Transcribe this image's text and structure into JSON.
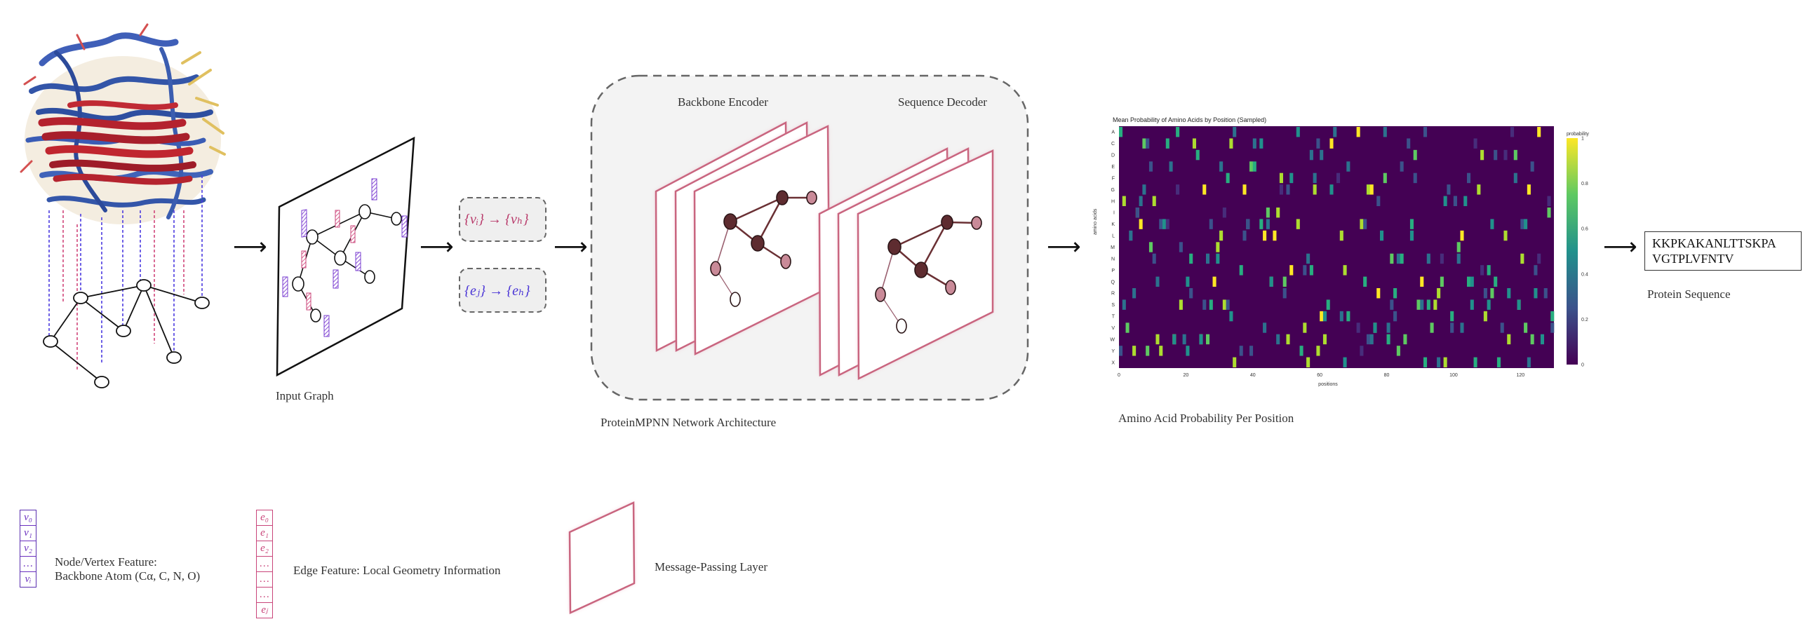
{
  "labels": {
    "input_graph": "Input Graph",
    "network_arch": "ProteinMPNN Network Architecture",
    "backbone_encoder": "Backbone Encoder",
    "sequence_decoder": "Sequence Decoder",
    "amino_caption": "Amino Acid Probability Per Position",
    "protein_sequence": "Protein Sequence",
    "node_feature_line1": "Node/Vertex Feature:",
    "node_feature_line2": "Backbone Atom (Cα, C, N, O)",
    "edge_feature": "Edge Feature: Local Geometry Information",
    "message_passing": "Message-Passing Layer"
  },
  "equations": {
    "node": "{vᵢ} → {vₕ}",
    "edge": "{eⱼ} → {eₕ}"
  },
  "sequence": {
    "line1": "KKPKAKANLTTSKPA",
    "line2": "VGTPLVFNTV"
  },
  "legend": {
    "node_cells": [
      "v₀",
      "v₁",
      "v₂",
      "…",
      "vᵢ"
    ],
    "edge_cells": [
      "e₀",
      "e₁",
      "e₂",
      "…",
      "…",
      "…",
      "eⱼ"
    ]
  },
  "colors": {
    "node": "#6a2fbf",
    "edge": "#c9457a",
    "layer_border": "#c9657f",
    "dark_node": "#5a2a2e",
    "light_node": "#c98a98"
  },
  "chart_data": {
    "type": "heatmap",
    "title": "Mean Probability of Amino Acids by Position (Sampled)",
    "xlabel": "positions",
    "ylabel": "amino acids",
    "y_categories": [
      "A",
      "C",
      "D",
      "E",
      "F",
      "G",
      "H",
      "I",
      "K",
      "L",
      "M",
      "N",
      "P",
      "Q",
      "R",
      "S",
      "T",
      "V",
      "W",
      "Y",
      "X"
    ],
    "x_ticks": [
      0,
      20,
      40,
      60,
      80,
      100,
      120
    ],
    "xlim": [
      0,
      130
    ],
    "colorbar_label": "probability",
    "colorbar_ticks": [
      "0",
      "0.2",
      "0.4",
      "0.6",
      "0.8",
      "1"
    ],
    "colorbar_range": [
      0,
      1
    ],
    "colormap": "viridis",
    "note": "sparse high-probability cells, one dominant amino acid per position"
  }
}
